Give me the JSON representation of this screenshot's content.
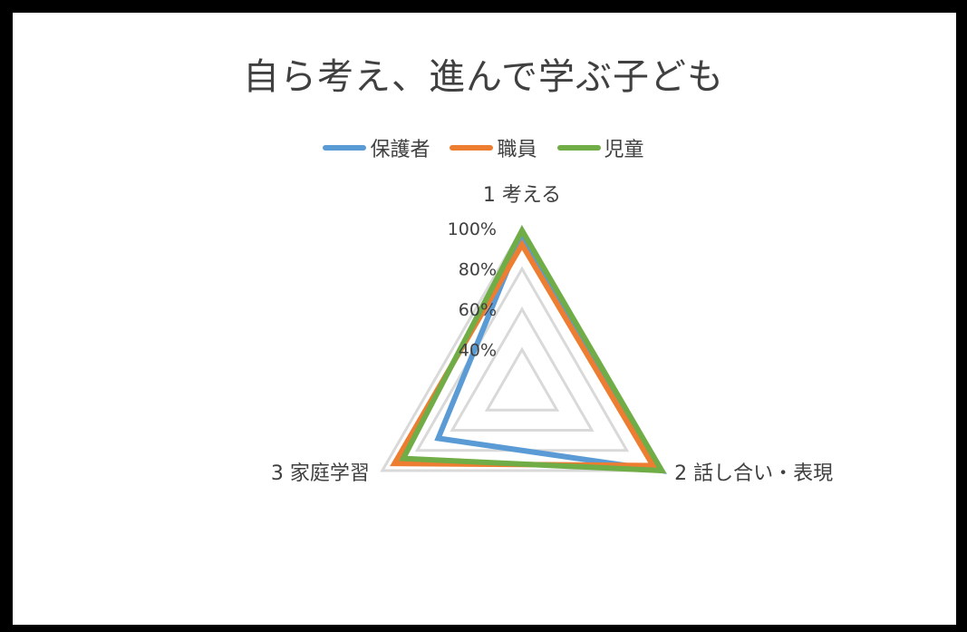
{
  "chart_data": {
    "type": "radar",
    "title": "自ら考え、進んで学ぶ子ども",
    "axes": [
      "1 考える",
      "2 話し合い・表現",
      "3 家庭学習"
    ],
    "ticks": [
      "40%",
      "60%",
      "80%",
      "100%"
    ],
    "tick_values": [
      0.4,
      0.6,
      0.8,
      1.0
    ],
    "rmin": 0.2,
    "rmax": 1.0,
    "series": [
      {
        "name": "保護者",
        "color": "#5B9BD5",
        "values": [
          0.97,
          1.0,
          0.68
        ]
      },
      {
        "name": "職員",
        "color": "#ED7D31",
        "values": [
          0.92,
          0.95,
          0.93
        ]
      },
      {
        "name": "児童",
        "color": "#70AD47",
        "values": [
          0.99,
          1.0,
          0.88
        ]
      }
    ],
    "legend_position": "top",
    "grid_color": "#D9D9D9"
  }
}
